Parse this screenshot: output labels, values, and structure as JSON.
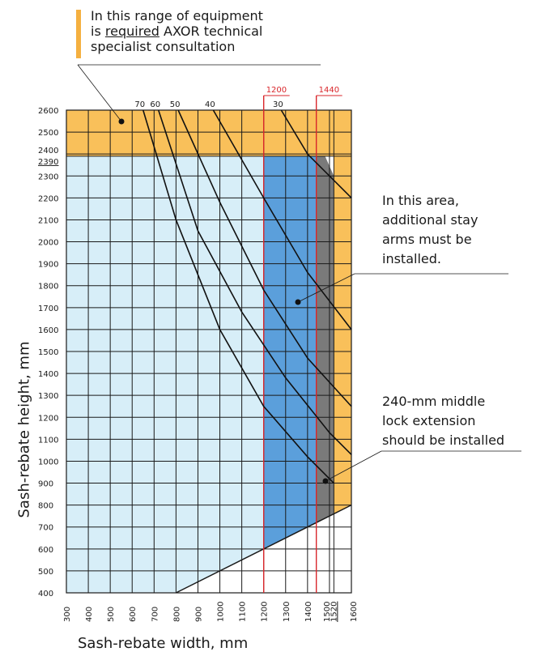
{
  "notes": {
    "top_line1": "In this range of equipment",
    "top_line2_pre": "is ",
    "top_line2_underlined": "required",
    "top_line2_post": " AXOR technical",
    "top_line3": "specialist consultation",
    "stay_line1": "In this area,",
    "stay_line2": "additional stay",
    "stay_line3": "arms must be",
    "stay_line4": "installed.",
    "lock_line1": "240-mm middle",
    "lock_line2": "lock extension",
    "lock_line3": "should be installed"
  },
  "colors": {
    "orange": "#f9c05a",
    "light_blue": "#d7eef8",
    "mid_blue": "#5b9fdb",
    "gray": "#7a7a7a",
    "red": "#d9262b",
    "grid": "#1a1a1a"
  },
  "chart_data": {
    "type": "line",
    "xlabel": "Sash-rebate width, mm",
    "ylabel": "Sash-rebate height, mm",
    "xlim": [
      300,
      1600
    ],
    "ylim": [
      400,
      2600
    ],
    "x_ticks": [
      300,
      400,
      500,
      600,
      700,
      800,
      900,
      1000,
      1100,
      1200,
      1300,
      1400,
      1500,
      1520,
      1600
    ],
    "y_ticks": [
      400,
      500,
      600,
      700,
      800,
      900,
      1000,
      1100,
      1200,
      1300,
      1400,
      1500,
      1600,
      1700,
      1800,
      1900,
      2000,
      2100,
      2200,
      2300,
      2390,
      2400,
      2500,
      2600
    ],
    "reference_lines_x": [
      {
        "value": 1200,
        "label": "1200"
      },
      {
        "value": 1440,
        "label": "1440"
      }
    ],
    "curves": [
      {
        "label": "70",
        "points": [
          [
            650,
            2600
          ],
          [
            800,
            2100
          ],
          [
            1000,
            1600
          ],
          [
            1200,
            1250
          ],
          [
            1400,
            1020
          ],
          [
            1520,
            900
          ]
        ]
      },
      {
        "label": "60",
        "points": [
          [
            720,
            2600
          ],
          [
            900,
            2050
          ],
          [
            1100,
            1680
          ],
          [
            1300,
            1380
          ],
          [
            1500,
            1130
          ],
          [
            1600,
            1030
          ]
        ]
      },
      {
        "label": "50",
        "points": [
          [
            810,
            2600
          ],
          [
            1000,
            2180
          ],
          [
            1200,
            1780
          ],
          [
            1400,
            1470
          ],
          [
            1600,
            1250
          ]
        ]
      },
      {
        "label": "40",
        "points": [
          [
            970,
            2600
          ],
          [
            1200,
            2200
          ],
          [
            1400,
            1860
          ],
          [
            1600,
            1600
          ]
        ]
      },
      {
        "label": "30",
        "points": [
          [
            1280,
            2600
          ],
          [
            1400,
            2400
          ],
          [
            1600,
            2200
          ]
        ]
      }
    ],
    "regions": {
      "consultation": {
        "y_from": 2390,
        "y_to": 2600
      },
      "standard": {
        "x_from": 300,
        "x_to": 1200,
        "y_top": 2390,
        "lower_boundary": [
          [
            800,
            400
          ],
          [
            1200,
            600
          ]
        ]
      },
      "stay_arms": {
        "x_from": 1200,
        "x_to": 1440,
        "y_top": 2390,
        "lower_boundary": [
          [
            1200,
            600
          ],
          [
            1440,
            720
          ]
        ]
      },
      "lock_extension": {
        "x_from": 1440,
        "x_to": 1520,
        "y_top": 2350,
        "lower_boundary": [
          [
            1440,
            720
          ],
          [
            1520,
            760
          ]
        ]
      },
      "right_orange": {
        "x_from": 1520,
        "x_to": 1600,
        "y_from": 800,
        "y_to": 2390
      }
    },
    "boundary_line": [
      [
        800,
        400
      ],
      [
        1600,
        800
      ]
    ]
  }
}
